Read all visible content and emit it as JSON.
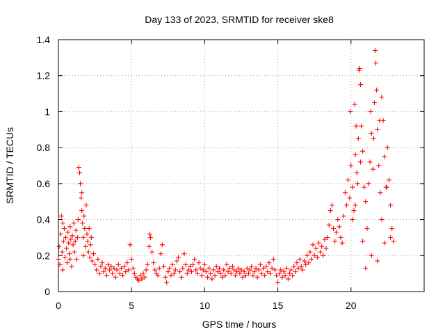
{
  "chart_data": {
    "type": "scatter",
    "title": "Day 133 of 2023, SRMTID for receiver ske8",
    "xlabel": "GPS time / hours",
    "ylabel": "SRMTID / TECUs",
    "xlim": [
      0,
      25
    ],
    "ylim": [
      0,
      1.4
    ],
    "xticks": [
      0,
      5,
      10,
      15,
      20
    ],
    "xtick_labels": [
      "0",
      "5",
      "10",
      "15",
      "20"
    ],
    "yticks": [
      0,
      0.2,
      0.4,
      0.6,
      0.8,
      1.0,
      1.2,
      1.4
    ],
    "ytick_labels": [
      "0",
      "0.2",
      "0.4",
      "0.6",
      "0.8",
      "1",
      "1.2",
      "1.4"
    ],
    "grid": true,
    "marker": "+",
    "color": "#ff0000",
    "series": [
      {
        "name": "SRMTID",
        "points": [
          [
            0.0,
            0.18
          ],
          [
            0.05,
            0.25
          ],
          [
            0.1,
            0.15
          ],
          [
            0.15,
            0.32
          ],
          [
            0.2,
            0.42
          ],
          [
            0.25,
            0.22
          ],
          [
            0.3,
            0.12
          ],
          [
            0.35,
            0.28
          ],
          [
            0.4,
            0.35
          ],
          [
            0.45,
            0.19
          ],
          [
            0.5,
            0.3
          ],
          [
            0.55,
            0.24
          ],
          [
            0.6,
            0.16
          ],
          [
            0.65,
            0.33
          ],
          [
            0.7,
            0.27
          ],
          [
            0.75,
            0.21
          ],
          [
            0.8,
            0.36
          ],
          [
            0.85,
            0.29
          ],
          [
            0.9,
            0.14
          ],
          [
            0.95,
            0.31
          ],
          [
            1.0,
            0.26
          ],
          [
            1.05,
            0.38
          ],
          [
            1.1,
            0.22
          ],
          [
            1.15,
            0.28
          ],
          [
            1.2,
            0.34
          ],
          [
            1.25,
            0.18
          ],
          [
            1.3,
            0.3
          ],
          [
            1.35,
            0.4
          ],
          [
            1.4,
            0.69
          ],
          [
            1.45,
            0.66
          ],
          [
            1.5,
            0.6
          ],
          [
            1.55,
            0.52
          ],
          [
            1.6,
            0.45
          ],
          [
            1.65,
            0.38
          ],
          [
            1.7,
            0.3
          ],
          [
            1.75,
            0.42
          ],
          [
            1.8,
            0.35
          ],
          [
            1.85,
            0.25
          ],
          [
            1.9,
            0.48
          ],
          [
            1.95,
            0.32
          ],
          [
            2.0,
            0.28
          ],
          [
            2.05,
            0.22
          ],
          [
            2.1,
            0.35
          ],
          [
            2.15,
            0.19
          ],
          [
            2.2,
            0.26
          ],
          [
            2.25,
            0.3
          ],
          [
            2.3,
            0.17
          ],
          [
            2.4,
            0.21
          ],
          [
            2.5,
            0.15
          ],
          [
            2.6,
            0.12
          ],
          [
            2.7,
            0.18
          ],
          [
            2.8,
            0.1
          ],
          [
            2.9,
            0.14
          ],
          [
            3.0,
            0.16
          ],
          [
            3.1,
            0.11
          ],
          [
            3.2,
            0.13
          ],
          [
            3.3,
            0.09
          ],
          [
            3.4,
            0.15
          ],
          [
            3.5,
            0.12
          ],
          [
            3.6,
            0.14
          ],
          [
            3.7,
            0.1
          ],
          [
            3.8,
            0.13
          ],
          [
            3.9,
            0.08
          ],
          [
            4.0,
            0.12
          ],
          [
            4.1,
            0.15
          ],
          [
            4.2,
            0.1
          ],
          [
            4.3,
            0.13
          ],
          [
            4.4,
            0.09
          ],
          [
            4.5,
            0.14
          ],
          [
            4.6,
            0.11
          ],
          [
            4.7,
            0.16
          ],
          [
            4.8,
            0.12
          ],
          [
            4.9,
            0.26
          ],
          [
            5.0,
            0.18
          ],
          [
            5.1,
            0.13
          ],
          [
            5.2,
            0.1
          ],
          [
            5.3,
            0.08
          ],
          [
            5.4,
            0.07
          ],
          [
            5.5,
            0.06
          ],
          [
            5.6,
            0.09
          ],
          [
            5.7,
            0.07
          ],
          [
            5.8,
            0.1
          ],
          [
            5.9,
            0.08
          ],
          [
            6.0,
            0.12
          ],
          [
            6.1,
            0.15
          ],
          [
            6.2,
            0.25
          ],
          [
            6.3,
            0.3
          ],
          [
            6.4,
            0.22
          ],
          [
            6.5,
            0.16
          ],
          [
            6.6,
            0.12
          ],
          [
            6.7,
            0.1
          ],
          [
            6.8,
            0.09
          ],
          [
            6.9,
            0.13
          ],
          [
            7.0,
            0.21
          ],
          [
            7.1,
            0.26
          ],
          [
            7.2,
            0.14
          ],
          [
            7.3,
            0.08
          ],
          [
            7.4,
            0.05
          ],
          [
            7.5,
            0.11
          ],
          [
            7.6,
            0.13
          ],
          [
            7.7,
            0.09
          ],
          [
            7.8,
            0.15
          ],
          [
            7.9,
            0.1
          ],
          [
            8.0,
            0.12
          ],
          [
            8.1,
            0.17
          ],
          [
            8.2,
            0.19
          ],
          [
            8.3,
            0.11
          ],
          [
            8.4,
            0.08
          ],
          [
            8.5,
            0.13
          ],
          [
            8.6,
            0.21
          ],
          [
            8.7,
            0.15
          ],
          [
            8.8,
            0.1
          ],
          [
            8.9,
            0.12
          ],
          [
            9.0,
            0.14
          ],
          [
            9.1,
            0.11
          ],
          [
            9.2,
            0.15
          ],
          [
            9.3,
            0.18
          ],
          [
            9.4,
            0.12
          ],
          [
            9.5,
            0.1
          ],
          [
            9.6,
            0.16
          ],
          [
            9.7,
            0.13
          ],
          [
            9.8,
            0.09
          ],
          [
            9.9,
            0.12
          ],
          [
            10.0,
            0.15
          ],
          [
            10.1,
            0.11
          ],
          [
            10.2,
            0.08
          ],
          [
            10.3,
            0.13
          ],
          [
            10.4,
            0.1
          ],
          [
            10.5,
            0.07
          ],
          [
            10.6,
            0.12
          ],
          [
            10.7,
            0.09
          ],
          [
            10.8,
            0.14
          ],
          [
            10.9,
            0.11
          ],
          [
            11.0,
            0.13
          ],
          [
            11.1,
            0.1
          ],
          [
            11.2,
            0.08
          ],
          [
            11.3,
            0.12
          ],
          [
            11.4,
            0.09
          ],
          [
            11.5,
            0.15
          ],
          [
            11.6,
            0.11
          ],
          [
            11.7,
            0.13
          ],
          [
            11.8,
            0.1
          ],
          [
            11.9,
            0.14
          ],
          [
            12.0,
            0.12
          ],
          [
            12.1,
            0.09
          ],
          [
            12.2,
            0.11
          ],
          [
            12.3,
            0.13
          ],
          [
            12.4,
            0.1
          ],
          [
            12.5,
            0.12
          ],
          [
            12.6,
            0.08
          ],
          [
            12.7,
            0.11
          ],
          [
            12.8,
            0.09
          ],
          [
            12.9,
            0.13
          ],
          [
            13.0,
            0.1
          ],
          [
            13.1,
            0.12
          ],
          [
            13.2,
            0.14
          ],
          [
            13.3,
            0.09
          ],
          [
            13.4,
            0.11
          ],
          [
            13.5,
            0.13
          ],
          [
            13.6,
            0.08
          ],
          [
            13.7,
            0.12
          ],
          [
            13.8,
            0.15
          ],
          [
            13.9,
            0.1
          ],
          [
            14.0,
            0.13
          ],
          [
            14.1,
            0.09
          ],
          [
            14.2,
            0.14
          ],
          [
            14.3,
            0.11
          ],
          [
            14.4,
            0.16
          ],
          [
            14.5,
            0.1
          ],
          [
            14.6,
            0.13
          ],
          [
            14.7,
            0.18
          ],
          [
            14.8,
            0.12
          ],
          [
            14.9,
            0.09
          ],
          [
            15.0,
            0.05
          ],
          [
            15.1,
            0.1
          ],
          [
            15.2,
            0.12
          ],
          [
            15.3,
            0.08
          ],
          [
            15.4,
            0.11
          ],
          [
            15.5,
            0.09
          ],
          [
            15.6,
            0.13
          ],
          [
            15.7,
            0.07
          ],
          [
            15.8,
            0.1
          ],
          [
            15.9,
            0.12
          ],
          [
            16.0,
            0.09
          ],
          [
            16.1,
            0.14
          ],
          [
            16.2,
            0.11
          ],
          [
            16.3,
            0.16
          ],
          [
            16.4,
            0.13
          ],
          [
            16.5,
            0.18
          ],
          [
            16.6,
            0.14
          ],
          [
            16.7,
            0.12
          ],
          [
            16.8,
            0.17
          ],
          [
            16.9,
            0.15
          ],
          [
            17.0,
            0.2
          ],
          [
            17.1,
            0.16
          ],
          [
            17.2,
            0.22
          ],
          [
            17.3,
            0.18
          ],
          [
            17.4,
            0.26
          ],
          [
            17.5,
            0.2
          ],
          [
            17.6,
            0.24
          ],
          [
            17.7,
            0.19
          ],
          [
            17.8,
            0.27
          ],
          [
            17.9,
            0.22
          ],
          [
            18.0,
            0.25
          ],
          [
            18.1,
            0.2
          ],
          [
            18.2,
            0.29
          ],
          [
            18.3,
            0.24
          ],
          [
            18.4,
            0.3
          ],
          [
            18.5,
            0.37
          ],
          [
            18.6,
            0.45
          ],
          [
            18.7,
            0.48
          ],
          [
            18.8,
            0.35
          ],
          [
            18.9,
            0.28
          ],
          [
            19.0,
            0.33
          ],
          [
            19.1,
            0.4
          ],
          [
            19.2,
            0.36
          ],
          [
            19.3,
            0.3
          ],
          [
            19.4,
            0.27
          ],
          [
            19.5,
            0.42
          ],
          [
            19.6,
            0.55
          ],
          [
            19.7,
            0.48
          ],
          [
            19.8,
            0.62
          ],
          [
            19.9,
            0.52
          ],
          [
            20.0,
            0.7
          ],
          [
            20.1,
            0.58
          ],
          [
            20.2,
            0.45
          ],
          [
            20.3,
            0.76
          ],
          [
            20.4,
            0.66
          ],
          [
            20.5,
            0.85
          ],
          [
            20.55,
            1.23
          ],
          [
            20.6,
            1.24
          ],
          [
            20.65,
            1.15
          ],
          [
            20.7,
            0.92
          ],
          [
            20.8,
            0.78
          ],
          [
            20.9,
            0.58
          ],
          [
            21.0,
            0.5
          ],
          [
            21.1,
            0.35
          ],
          [
            21.2,
            0.6
          ],
          [
            21.3,
            0.72
          ],
          [
            21.4,
            0.88
          ],
          [
            21.5,
            0.68
          ],
          [
            21.6,
            1.05
          ],
          [
            21.65,
            1.34
          ],
          [
            21.7,
            1.27
          ],
          [
            21.75,
            1.12
          ],
          [
            21.8,
            0.9
          ],
          [
            21.9,
            0.7
          ],
          [
            22.0,
            0.55
          ],
          [
            22.1,
            0.4
          ],
          [
            22.2,
            0.95
          ],
          [
            22.3,
            0.75
          ],
          [
            22.4,
            0.58
          ],
          [
            22.5,
            0.8
          ],
          [
            22.6,
            0.62
          ],
          [
            22.7,
            0.48
          ],
          [
            22.8,
            0.35
          ],
          [
            22.9,
            0.28
          ],
          [
            20.1,
            0.4
          ],
          [
            20.3,
            0.48
          ],
          [
            20.8,
            0.28
          ],
          [
            21.0,
            0.13
          ],
          [
            21.4,
            0.2
          ],
          [
            21.8,
            0.17
          ],
          [
            22.3,
            0.27
          ],
          [
            22.7,
            0.3
          ],
          [
            1.6,
            0.55
          ],
          [
            1.7,
            0.2
          ],
          [
            0.3,
            0.38
          ],
          [
            0.8,
            0.18
          ],
          [
            6.25,
            0.32
          ],
          [
            19.95,
            1.0
          ],
          [
            20.25,
            1.04
          ],
          [
            20.45,
            0.6
          ],
          [
            21.35,
            1.0
          ],
          [
            21.95,
            0.95
          ],
          [
            22.1,
            1.08
          ],
          [
            20.35,
            0.92
          ],
          [
            21.55,
            0.85
          ],
          [
            22.45,
            0.58
          ],
          [
            20.65,
            0.72
          ]
        ]
      }
    ]
  }
}
